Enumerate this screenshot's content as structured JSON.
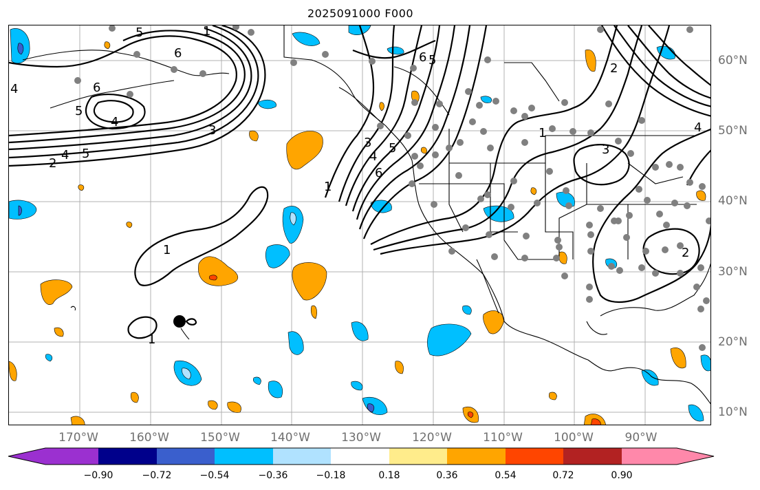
{
  "title": "2025091000 F000",
  "map": {
    "lon_labels": [
      "170°W",
      "160°W",
      "150°W",
      "140°W",
      "130°W",
      "120°W",
      "110°W",
      "100°W",
      "90°W"
    ],
    "lat_labels": [
      "60°N",
      "50°N",
      "40°N",
      "30°N",
      "20°N",
      "10°N"
    ],
    "contour_labels": [
      "1",
      "2",
      "3",
      "4",
      "5",
      "6"
    ],
    "gridlines": true
  },
  "colorbar": {
    "ticks": [
      "−0.90",
      "−0.72",
      "−0.54",
      "−0.36",
      "−0.18",
      "0.18",
      "0.36",
      "0.54",
      "0.72",
      "0.90"
    ],
    "colors": [
      "#9b30d0",
      "#00008b",
      "#3a5fcd",
      "#00bfff",
      "#b0e2ff",
      "#ffffff",
      "#ffec8b",
      "#ffa500",
      "#ff4500",
      "#b22222",
      "#ff88aa"
    ],
    "extend": "both"
  }
}
